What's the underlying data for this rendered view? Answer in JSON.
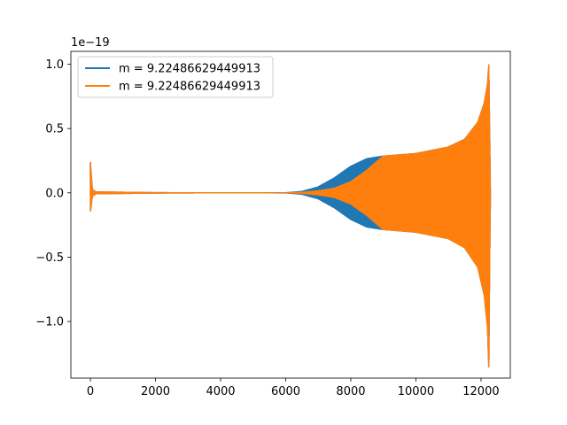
{
  "chart_data": {
    "type": "line",
    "title": "",
    "xlabel": "",
    "ylabel": "",
    "y_offset_label": "1e−19",
    "xlim": [
      -600,
      12900
    ],
    "ylim": [
      -1.44,
      1.1
    ],
    "x_ticks": [
      0,
      2000,
      4000,
      6000,
      8000,
      10000,
      12000
    ],
    "x_tick_labels": [
      "0",
      "2000",
      "4000",
      "6000",
      "8000",
      "10000",
      "12000"
    ],
    "y_ticks": [
      -1.0,
      -0.5,
      0.0,
      0.5,
      1.0
    ],
    "y_tick_labels": [
      "−1.0",
      "−0.5",
      "0.0",
      "0.5",
      "1.0"
    ],
    "grid": false,
    "legend_position": "top-left",
    "series": [
      {
        "name": "m = 9.22486629449913",
        "color": "#1f77b4",
        "envelope_upper": [
          [
            0,
            0.24
          ],
          [
            60,
            0.03
          ],
          [
            150,
            0.012
          ],
          [
            2000,
            0.006
          ],
          [
            4000,
            0.004
          ],
          [
            6000,
            0.005
          ],
          [
            6500,
            0.015
          ],
          [
            7000,
            0.05
          ],
          [
            7500,
            0.12
          ],
          [
            8000,
            0.21
          ],
          [
            8500,
            0.27
          ],
          [
            9000,
            0.29
          ],
          [
            10000,
            0.31
          ],
          [
            11000,
            0.36
          ],
          [
            11500,
            0.42
          ],
          [
            11900,
            0.55
          ],
          [
            12100,
            0.7
          ],
          [
            12200,
            0.85
          ],
          [
            12240,
            1.0
          ],
          [
            12270,
            0.4
          ],
          [
            12290,
            0.0
          ]
        ],
        "envelope_lower": [
          [
            0,
            -0.15
          ],
          [
            60,
            -0.03
          ],
          [
            150,
            -0.012
          ],
          [
            2000,
            -0.006
          ],
          [
            4000,
            -0.004
          ],
          [
            6000,
            -0.005
          ],
          [
            6500,
            -0.015
          ],
          [
            7000,
            -0.05
          ],
          [
            7500,
            -0.12
          ],
          [
            8000,
            -0.21
          ],
          [
            8500,
            -0.27
          ],
          [
            9000,
            -0.29
          ],
          [
            10000,
            -0.31
          ],
          [
            11000,
            -0.36
          ],
          [
            11500,
            -0.43
          ],
          [
            11900,
            -0.58
          ],
          [
            12100,
            -0.8
          ],
          [
            12200,
            -1.05
          ],
          [
            12240,
            -1.38
          ],
          [
            12270,
            -0.5
          ],
          [
            12290,
            0.0
          ]
        ]
      },
      {
        "name": "m = 9.22486629449913",
        "color": "#ff7f0e",
        "envelope_upper": [
          [
            0,
            0.24
          ],
          [
            60,
            0.03
          ],
          [
            150,
            0.012
          ],
          [
            2000,
            0.006
          ],
          [
            4000,
            0.004
          ],
          [
            6000,
            0.004
          ],
          [
            6500,
            0.008
          ],
          [
            7000,
            0.02
          ],
          [
            7500,
            0.04
          ],
          [
            8000,
            0.09
          ],
          [
            8500,
            0.18
          ],
          [
            9000,
            0.29
          ],
          [
            10000,
            0.31
          ],
          [
            11000,
            0.36
          ],
          [
            11500,
            0.42
          ],
          [
            11900,
            0.55
          ],
          [
            12100,
            0.7
          ],
          [
            12200,
            0.85
          ],
          [
            12240,
            1.0
          ],
          [
            12270,
            0.4
          ],
          [
            12290,
            0.0
          ]
        ],
        "envelope_lower": [
          [
            0,
            -0.15
          ],
          [
            60,
            -0.03
          ],
          [
            150,
            -0.012
          ],
          [
            2000,
            -0.006
          ],
          [
            4000,
            -0.004
          ],
          [
            6000,
            -0.004
          ],
          [
            6500,
            -0.008
          ],
          [
            7000,
            -0.02
          ],
          [
            7500,
            -0.04
          ],
          [
            8000,
            -0.09
          ],
          [
            8500,
            -0.18
          ],
          [
            9000,
            -0.29
          ],
          [
            10000,
            -0.31
          ],
          [
            11000,
            -0.36
          ],
          [
            11500,
            -0.43
          ],
          [
            11900,
            -0.58
          ],
          [
            12100,
            -0.8
          ],
          [
            12200,
            -1.05
          ],
          [
            12240,
            -1.38
          ],
          [
            12270,
            -0.5
          ],
          [
            12290,
            0.0
          ]
        ]
      }
    ]
  }
}
